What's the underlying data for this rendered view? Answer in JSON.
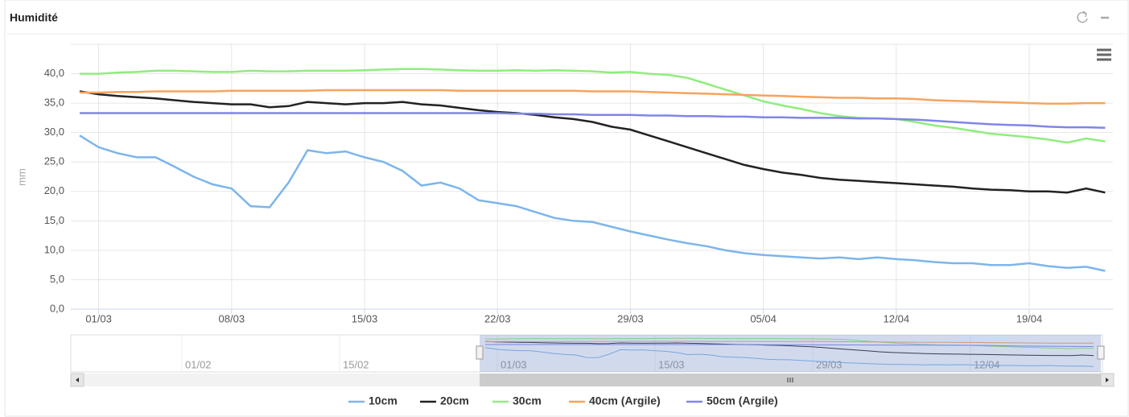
{
  "chart_data": {
    "type": "line",
    "title": "Humidité",
    "y_axis_label": "mm",
    "ylim": [
      0,
      45
    ],
    "yticks": [
      {
        "value": 0,
        "label": "0,0"
      },
      {
        "value": 5,
        "label": "5,0"
      },
      {
        "value": 10,
        "label": "10,0"
      },
      {
        "value": 15,
        "label": "15,0"
      },
      {
        "value": 20,
        "label": "20,0"
      },
      {
        "value": 25,
        "label": "25,0"
      },
      {
        "value": 30,
        "label": "30,0"
      },
      {
        "value": 35,
        "label": "35,0"
      },
      {
        "value": 40,
        "label": "40,0"
      }
    ],
    "grid": true,
    "legend": "bottom",
    "categories": [
      null,
      "01/03",
      null,
      null,
      null,
      null,
      null,
      null,
      "08/03",
      null,
      null,
      null,
      null,
      null,
      null,
      "15/03",
      null,
      null,
      null,
      null,
      null,
      null,
      "22/03",
      null,
      null,
      null,
      null,
      null,
      null,
      "29/03",
      null,
      null,
      null,
      null,
      null,
      null,
      "05/04",
      null,
      null,
      null,
      null,
      null,
      null,
      "12/04",
      null,
      null,
      null,
      null,
      null,
      null,
      "19/04",
      null,
      null,
      null,
      null
    ],
    "series": [
      {
        "name": "10cm",
        "color": "#7cb5ec",
        "values": [
          29.5,
          27.5,
          26.5,
          25.8,
          25.8,
          24.2,
          22.5,
          21.2,
          20.5,
          17.5,
          17.3,
          21.5,
          27,
          26.5,
          26.8,
          25.8,
          25,
          23.5,
          21,
          21.5,
          20.5,
          18.5,
          18,
          17.5,
          16.5,
          15.5,
          15,
          14.8,
          14,
          13.2,
          12.5,
          11.8,
          11.2,
          10.7,
          10,
          9.5,
          9.2,
          9,
          8.8,
          8.6,
          8.8,
          8.5,
          8.8,
          8.5,
          8.3,
          8,
          7.8,
          7.8,
          7.5,
          7.5,
          7.8,
          7.3,
          7,
          7.2,
          6.5
        ]
      },
      {
        "name": "20cm",
        "color": "#222222",
        "values": [
          37,
          36.5,
          36.2,
          36,
          35.8,
          35.5,
          35.2,
          35,
          34.8,
          34.8,
          34.3,
          34.5,
          35.2,
          35,
          34.8,
          35,
          35,
          35.2,
          34.8,
          34.6,
          34.2,
          33.8,
          33.5,
          33.3,
          33,
          32.6,
          32.3,
          31.8,
          31,
          30.5,
          29.5,
          28.5,
          27.5,
          26.5,
          25.5,
          24.5,
          23.8,
          23.2,
          22.8,
          22.3,
          22,
          21.8,
          21.6,
          21.4,
          21.2,
          21,
          20.8,
          20.5,
          20.3,
          20.2,
          20,
          20,
          19.8,
          20.5,
          19.8
        ]
      },
      {
        "name": "30cm",
        "color": "#90ed7d",
        "values": [
          40,
          40,
          40.2,
          40.3,
          40.5,
          40.5,
          40.4,
          40.3,
          40.3,
          40.5,
          40.4,
          40.4,
          40.5,
          40.5,
          40.5,
          40.6,
          40.7,
          40.8,
          40.8,
          40.7,
          40.6,
          40.5,
          40.5,
          40.6,
          40.5,
          40.6,
          40.5,
          40.4,
          40.2,
          40.3,
          40,
          39.8,
          39.3,
          38.3,
          37.3,
          36.3,
          35.3,
          34.6,
          34,
          33.3,
          32.8,
          32.5,
          32.4,
          32.3,
          31.8,
          31.2,
          30.8,
          30.3,
          29.8,
          29.5,
          29.2,
          28.8,
          28.3,
          29,
          28.5
        ]
      },
      {
        "name": "40cm (Argile)",
        "color": "#f7a35c",
        "values": [
          36.8,
          36.8,
          36.9,
          36.9,
          37,
          37,
          37,
          37,
          37.1,
          37.1,
          37.1,
          37.1,
          37.1,
          37.2,
          37.2,
          37.2,
          37.2,
          37.2,
          37.2,
          37.2,
          37.1,
          37.1,
          37.1,
          37.1,
          37.1,
          37.1,
          37.1,
          37,
          37,
          37,
          36.9,
          36.8,
          36.7,
          36.6,
          36.5,
          36.4,
          36.3,
          36.2,
          36.1,
          36,
          35.9,
          35.9,
          35.8,
          35.8,
          35.7,
          35.5,
          35.4,
          35.3,
          35.2,
          35.1,
          35,
          34.9,
          34.9,
          35,
          35
        ]
      },
      {
        "name": "50cm (Argile)",
        "color": "#8085e9",
        "values": [
          33.3,
          33.3,
          33.3,
          33.3,
          33.3,
          33.3,
          33.3,
          33.3,
          33.3,
          33.3,
          33.3,
          33.3,
          33.3,
          33.3,
          33.3,
          33.3,
          33.3,
          33.3,
          33.3,
          33.3,
          33.3,
          33.3,
          33.3,
          33.2,
          33.2,
          33.1,
          33.1,
          33,
          33,
          33,
          32.9,
          32.9,
          32.8,
          32.8,
          32.7,
          32.7,
          32.6,
          32.6,
          32.5,
          32.5,
          32.5,
          32.4,
          32.4,
          32.3,
          32.2,
          32,
          31.8,
          31.6,
          31.4,
          31.3,
          31.2,
          31,
          30.9,
          30.9,
          30.8
        ]
      }
    ],
    "navigator": {
      "labels": [
        "01/02",
        "15/02",
        "01/03",
        "15/03",
        "29/03",
        "12/04"
      ]
    }
  }
}
